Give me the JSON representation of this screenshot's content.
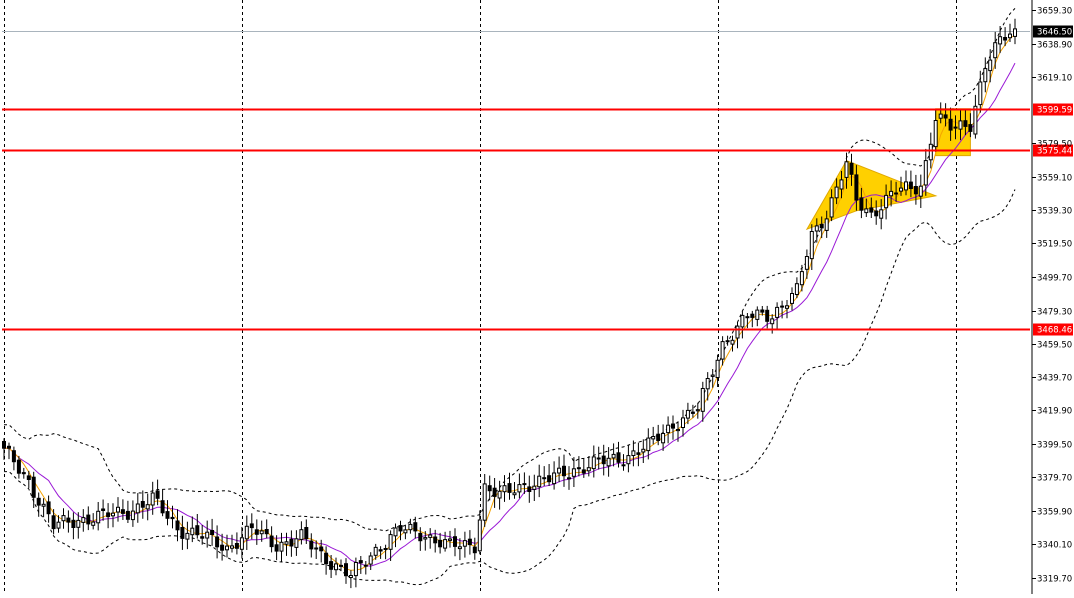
{
  "chart_data": {
    "type": "candlestick",
    "title": "",
    "xlabel": "",
    "ylabel": "",
    "ylim": [
      3310.0,
      3665.0
    ],
    "grid": "vertical dashed session separators",
    "current_price": "3646.50",
    "y_tick_labels": [
      {
        "label": "3659.30",
        "value": 3659.3
      },
      {
        "label": "3638.90",
        "value": 3638.9
      },
      {
        "label": "3619.10",
        "value": 3619.1
      },
      {
        "label": "3579.50",
        "value": 3579.5
      },
      {
        "label": "3559.10",
        "value": 3559.1
      },
      {
        "label": "3539.30",
        "value": 3539.3
      },
      {
        "label": "3519.50",
        "value": 3519.5
      },
      {
        "label": "3499.70",
        "value": 3499.7
      },
      {
        "label": "3479.30",
        "value": 3479.3
      },
      {
        "label": "3459.50",
        "value": 3459.5
      },
      {
        "label": "3439.70",
        "value": 3439.7
      },
      {
        "label": "3419.90",
        "value": 3419.9
      },
      {
        "label": "3399.50",
        "value": 3399.5
      },
      {
        "label": "3379.70",
        "value": 3379.7
      },
      {
        "label": "3359.90",
        "value": 3359.9
      },
      {
        "label": "3340.10",
        "value": 3340.1
      },
      {
        "label": "3319.70",
        "value": 3319.7
      }
    ],
    "horizontal_levels": [
      {
        "label": "3599.59",
        "value": 3599.59,
        "color": "#ff0000"
      },
      {
        "label": "3575.44",
        "value": 3575.44,
        "color": "#ff0000"
      },
      {
        "label": "3468.46",
        "value": 3468.46,
        "color": "#ff0000"
      }
    ],
    "candle_anchors": [
      [
        0,
        3395
      ],
      [
        5,
        3378
      ],
      [
        10,
        3350
      ],
      [
        15,
        3355
      ],
      [
        20,
        3356
      ],
      [
        25,
        3360
      ],
      [
        30,
        3366
      ],
      [
        35,
        3350
      ],
      [
        40,
        3344
      ],
      [
        45,
        3338
      ],
      [
        50,
        3348
      ],
      [
        55,
        3340
      ],
      [
        60,
        3343
      ],
      [
        65,
        3332
      ],
      [
        70,
        3320
      ],
      [
        75,
        3337
      ],
      [
        80,
        3348
      ],
      [
        85,
        3346
      ],
      [
        90,
        3338
      ],
      [
        95,
        3340
      ],
      [
        97,
        3374
      ],
      [
        100,
        3368
      ],
      [
        105,
        3376
      ],
      [
        110,
        3378
      ],
      [
        115,
        3385
      ],
      [
        120,
        3388
      ],
      [
        125,
        3392
      ],
      [
        130,
        3398
      ],
      [
        135,
        3412
      ],
      [
        140,
        3420
      ],
      [
        145,
        3460
      ],
      [
        150,
        3475
      ],
      [
        155,
        3478
      ],
      [
        160,
        3490
      ],
      [
        163,
        3525
      ],
      [
        166,
        3538
      ],
      [
        170,
        3566
      ],
      [
        172,
        3545
      ],
      [
        175,
        3538
      ],
      [
        180,
        3550
      ],
      [
        185,
        3555
      ],
      [
        188,
        3595
      ],
      [
        191,
        3588
      ],
      [
        195,
        3592
      ],
      [
        198,
        3625
      ],
      [
        200,
        3635
      ],
      [
        203,
        3646.5
      ]
    ],
    "session_separators": [
      0,
      48,
      96,
      144,
      192
    ],
    "indicators": [
      {
        "type": "bollinger_bands",
        "color": "#000000",
        "style": "dashed"
      },
      {
        "type": "moving_average_fast",
        "color": "#f5a300"
      },
      {
        "type": "moving_average_slow",
        "color": "#9a19d6"
      }
    ],
    "pattern_highlights": [
      {
        "shape": "flag",
        "color": "#ffd000",
        "points": [
          [
            162,
            3528
          ],
          [
            170,
            3569
          ],
          [
            188,
            3548
          ],
          [
            172,
            3539
          ]
        ]
      },
      {
        "shape": "box",
        "color": "#ffd000",
        "points": [
          [
            188,
            3600
          ],
          [
            195,
            3600
          ],
          [
            195,
            3572
          ],
          [
            188,
            3572
          ]
        ]
      }
    ]
  }
}
